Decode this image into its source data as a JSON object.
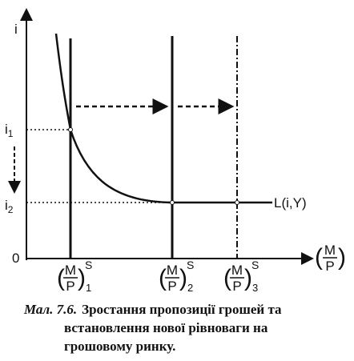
{
  "axes": {
    "y_label": "i",
    "origin": "0",
    "x_label": {
      "num": "M",
      "den": "P"
    },
    "y_marks": [
      {
        "base": "i",
        "sub": "1"
      },
      {
        "base": "i",
        "sub": "2"
      }
    ]
  },
  "curve_label": "L(i,Y)",
  "supply_labels": [
    {
      "num": "M",
      "den": "P",
      "sup": "S",
      "sub": "1"
    },
    {
      "num": "M",
      "den": "P",
      "sup": "S",
      "sub": "2"
    },
    {
      "num": "M",
      "den": "P",
      "sup": "S",
      "sub": "3"
    }
  ],
  "caption": {
    "label": "Мал. 7.6.",
    "lines": [
      "Зростання пропозиції грошей та",
      "встановлення нової рівноваги на",
      "грошовому ринку."
    ]
  }
}
